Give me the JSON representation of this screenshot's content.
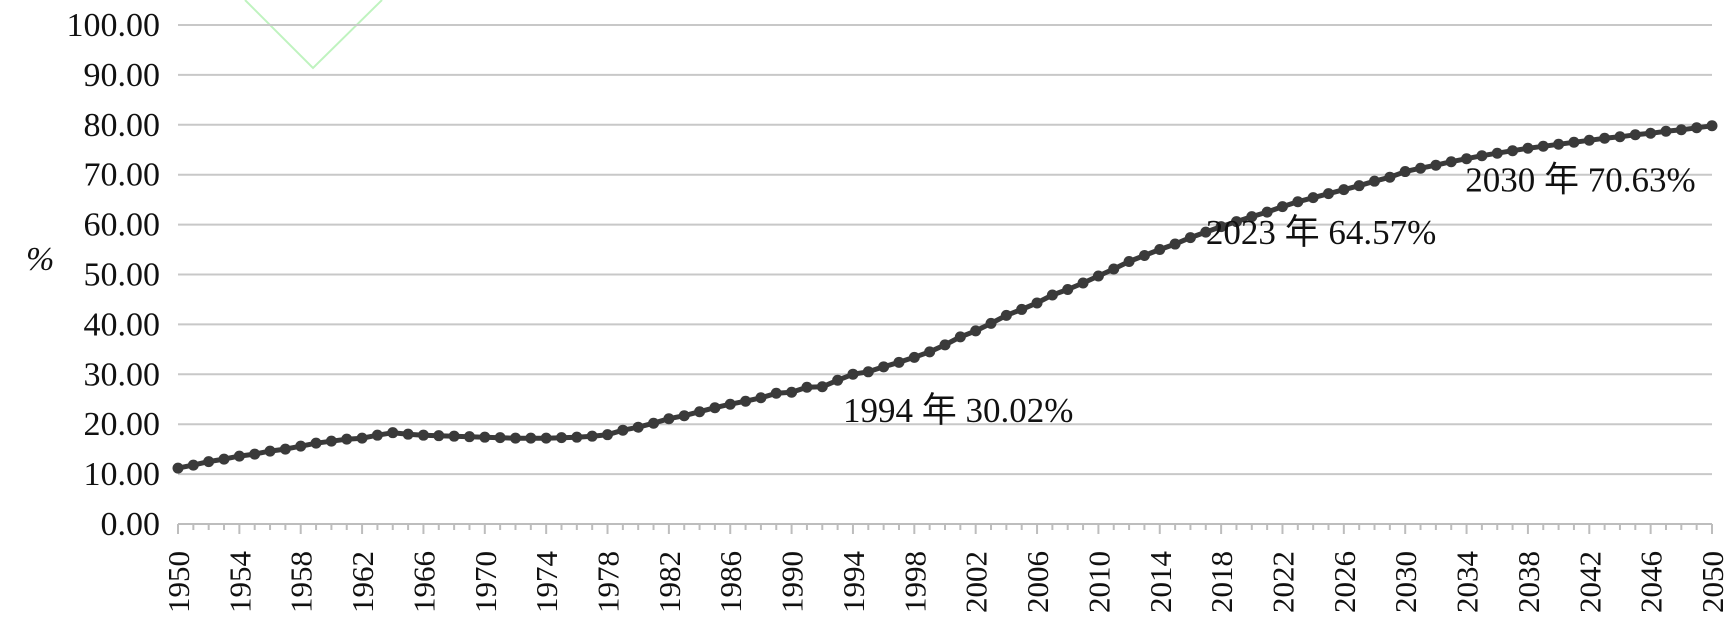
{
  "chart_data": {
    "type": "line",
    "title": "",
    "xlabel": "",
    "ylabel": "%",
    "xlim": [
      1950,
      2050
    ],
    "ylim": [
      0,
      100
    ],
    "y_ticks": [
      "0.00",
      "10.00",
      "20.00",
      "30.00",
      "40.00",
      "50.00",
      "60.00",
      "70.00",
      "80.00",
      "90.00",
      "100.00"
    ],
    "x_ticks": [
      "1950",
      "1954",
      "1958",
      "1962",
      "1966",
      "1970",
      "1974",
      "1978",
      "1982",
      "1986",
      "1990",
      "1994",
      "1998",
      "2002",
      "2006",
      "2010",
      "2014",
      "2018",
      "2022",
      "2026",
      "2030",
      "2034",
      "2038",
      "2042",
      "2046",
      "2050"
    ],
    "grid": true,
    "legend": "none",
    "colors": {
      "line": "#3a3a3a",
      "grid": "#c8c8c8",
      "axis": "#bdbdbd"
    },
    "series": [
      {
        "x": [
          1950,
          1951,
          1952,
          1953,
          1954,
          1955,
          1956,
          1957,
          1958,
          1959,
          1960,
          1961,
          1962,
          1963,
          1964,
          1965,
          1966,
          1967,
          1968,
          1969,
          1970,
          1971,
          1972,
          1973,
          1974,
          1975,
          1976,
          1977,
          1978,
          1979,
          1980,
          1981,
          1982,
          1983,
          1984,
          1985,
          1986,
          1987,
          1988,
          1989,
          1990,
          1991,
          1992,
          1993,
          1994,
          1995,
          1996,
          1997,
          1998,
          1999,
          2000,
          2001,
          2002,
          2003,
          2004,
          2005,
          2006,
          2007,
          2008,
          2009,
          2010,
          2011,
          2012,
          2013,
          2014,
          2015,
          2016,
          2017,
          2018,
          2019,
          2020,
          2021,
          2022,
          2023,
          2024,
          2025,
          2026,
          2027,
          2028,
          2029,
          2030,
          2031,
          2032,
          2033,
          2034,
          2035,
          2036,
          2037,
          2038,
          2039,
          2040,
          2041,
          2042,
          2043,
          2044,
          2045,
          2046,
          2047,
          2048,
          2049,
          2050
        ],
        "values": [
          11.2,
          11.8,
          12.5,
          13.0,
          13.6,
          14.0,
          14.6,
          15.0,
          15.6,
          16.2,
          16.6,
          17.0,
          17.2,
          17.8,
          18.3,
          18.0,
          17.8,
          17.7,
          17.6,
          17.5,
          17.4,
          17.3,
          17.2,
          17.2,
          17.2,
          17.3,
          17.4,
          17.6,
          17.9,
          18.8,
          19.4,
          20.2,
          21.1,
          21.7,
          22.5,
          23.3,
          24.0,
          24.6,
          25.3,
          26.2,
          26.4,
          27.4,
          27.5,
          28.8,
          30.02,
          30.5,
          31.5,
          32.4,
          33.4,
          34.5,
          35.9,
          37.5,
          38.7,
          40.2,
          41.8,
          43.0,
          44.3,
          45.9,
          47.0,
          48.3,
          49.7,
          51.1,
          52.6,
          53.8,
          55.0,
          56.1,
          57.4,
          58.5,
          59.6,
          60.6,
          61.6,
          62.5,
          63.6,
          64.57,
          65.4,
          66.2,
          67.0,
          67.8,
          68.7,
          69.5,
          70.63,
          71.3,
          71.9,
          72.6,
          73.2,
          73.8,
          74.3,
          74.8,
          75.3,
          75.7,
          76.1,
          76.5,
          76.9,
          77.3,
          77.6,
          78.0,
          78.3,
          78.7,
          79.0,
          79.4,
          79.8
        ]
      }
    ],
    "annotations": [
      {
        "text": "1994 年 30.02%",
        "x": 1994,
        "y": 30.02
      },
      {
        "text": "2023 年 64.57%",
        "x": 2023,
        "y": 64.57
      },
      {
        "text": "2030 年 70.63%",
        "x": 2030,
        "y": 70.63
      }
    ]
  }
}
